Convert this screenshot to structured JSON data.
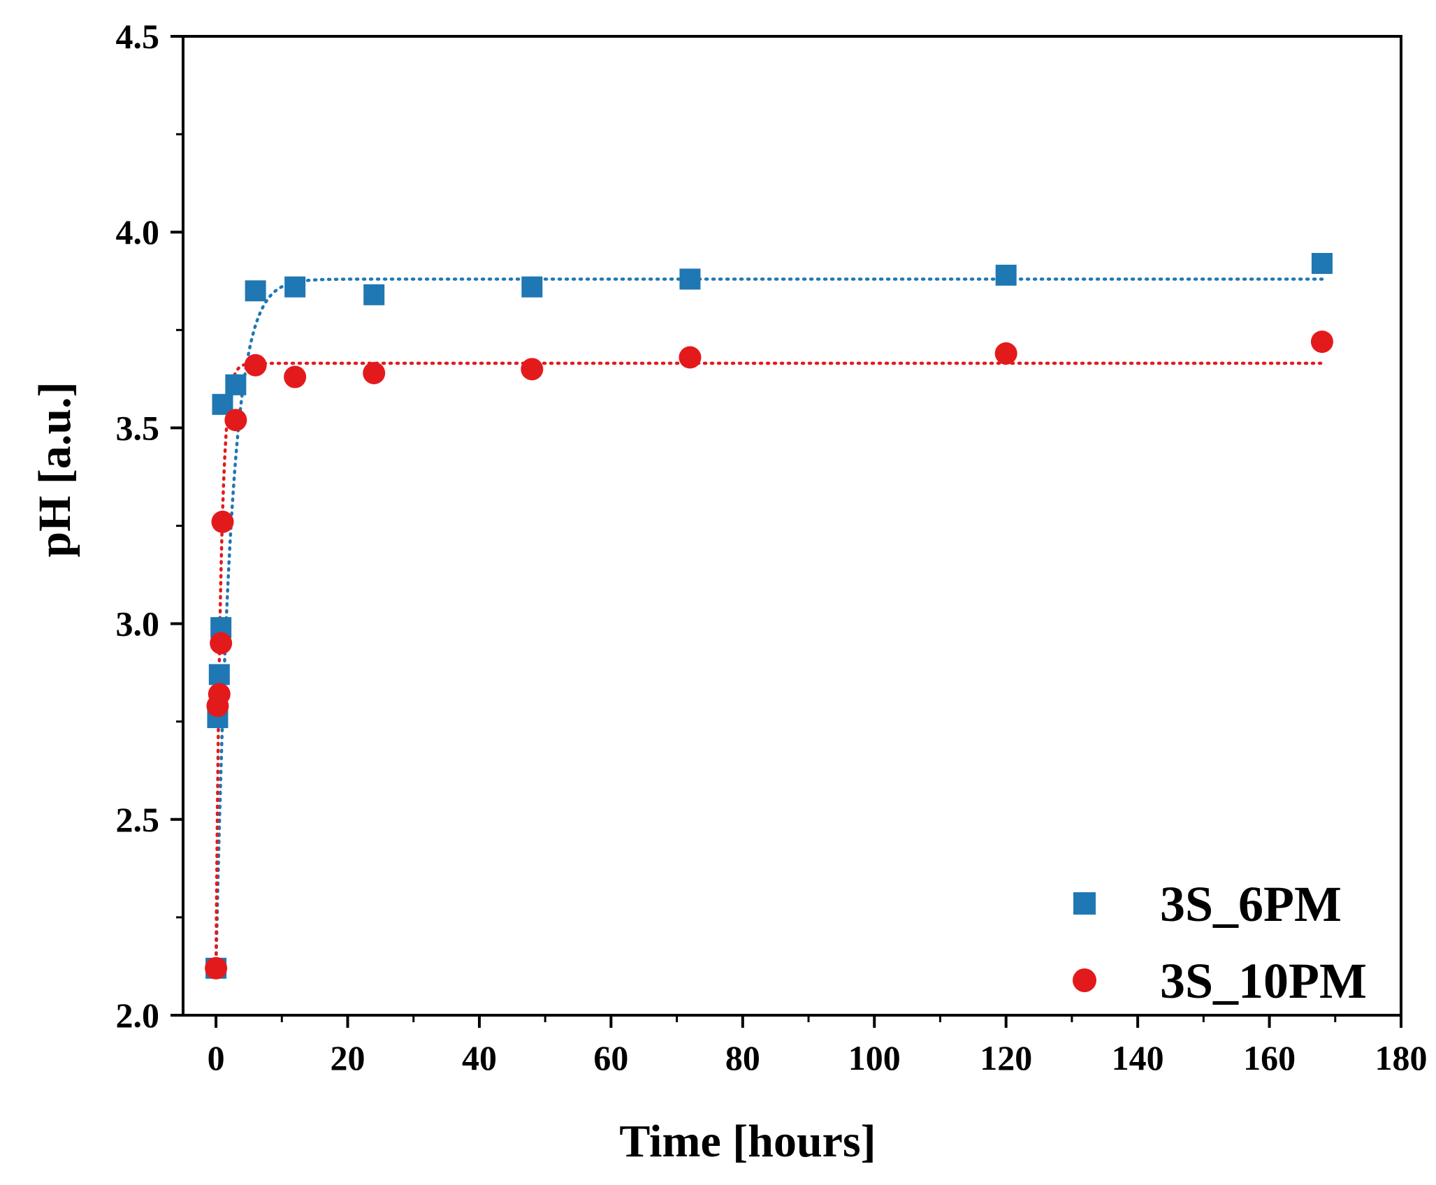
{
  "chart_data": {
    "type": "scatter",
    "title": "",
    "xlabel": "Time [hours]",
    "ylabel": "pH [a.u.]",
    "xlim": [
      -5,
      180
    ],
    "ylim": [
      2.0,
      4.5
    ],
    "x_ticks": [
      0,
      20,
      40,
      60,
      80,
      100,
      120,
      140,
      160,
      180
    ],
    "y_ticks": [
      2.0,
      2.5,
      3.0,
      3.5,
      4.0,
      4.5
    ],
    "x_tick_labels": [
      "0",
      "20",
      "40",
      "60",
      "80",
      "100",
      "120",
      "140",
      "160",
      "180"
    ],
    "y_tick_labels": [
      "2.0",
      "2.5",
      "3.0",
      "3.5",
      "4.0",
      "4.5"
    ],
    "grid": false,
    "legend_position": "bottom-right",
    "series": [
      {
        "name": "3S_6PM",
        "marker": "square",
        "color": "#1f77b4",
        "x": [
          0,
          0.25,
          0.5,
          0.75,
          1,
          3,
          6,
          12,
          24,
          48,
          72,
          120,
          168
        ],
        "y": [
          2.12,
          2.76,
          2.87,
          2.99,
          3.56,
          3.61,
          3.85,
          3.86,
          3.84,
          3.86,
          3.88,
          3.89,
          3.92
        ],
        "fit": {
          "style": "dotted",
          "model": "exponential",
          "y0": 2.12,
          "plateau": 3.88,
          "rate": 0.45,
          "x_end": 168
        }
      },
      {
        "name": "3S_10PM",
        "marker": "circle",
        "color": "#e31a1c",
        "x": [
          0,
          0.25,
          0.5,
          0.75,
          1,
          3,
          6,
          12,
          24,
          48,
          72,
          120,
          168
        ],
        "y": [
          2.12,
          2.79,
          2.82,
          2.95,
          3.26,
          3.52,
          3.66,
          3.63,
          3.64,
          3.65,
          3.68,
          3.69,
          3.72
        ],
        "fit": {
          "style": "dotted",
          "model": "exponential",
          "y0": 2.12,
          "plateau": 3.665,
          "rate": 1.4,
          "x_end": 168
        }
      }
    ]
  }
}
